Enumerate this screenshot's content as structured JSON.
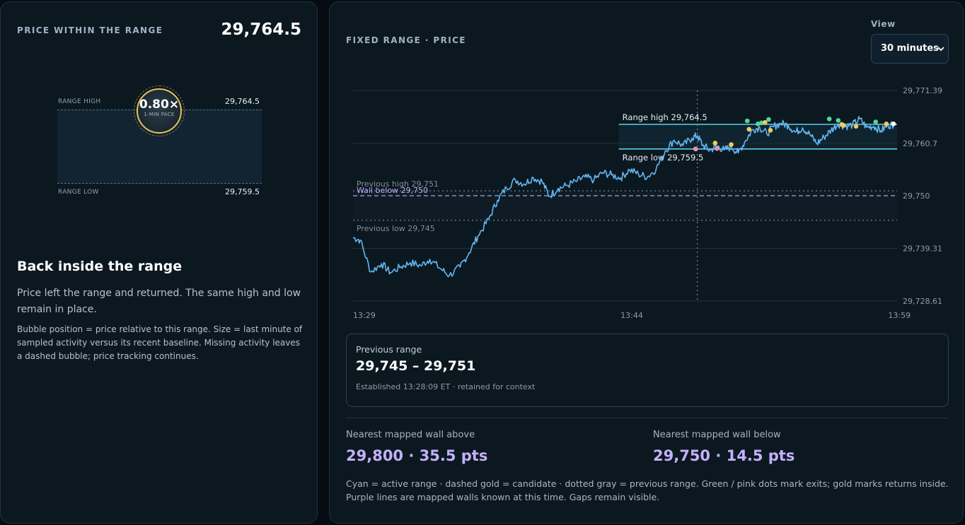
{
  "left": {
    "kicker": "PRICE WITHIN THE RANGE",
    "price": "29,764.5",
    "gauge": {
      "range_high_label": "RANGE HIGH",
      "range_high_value": "29,764.5",
      "range_low_label": "RANGE LOW",
      "range_low_value": "29,759.5",
      "pace_value": "0.80×",
      "pace_label": "1-MIN PACE",
      "position_fraction": 1.0
    },
    "status_title": "Back inside the range",
    "status_text": "Price left the range and returned. The same high and low remain in place.",
    "note": "Bubble position = price relative to this range. Size = last minute of sampled activity versus its recent baseline. Missing activity leaves a dashed bubble; price tracking continues."
  },
  "right": {
    "kicker": "FIXED RANGE · PRICE",
    "view_label": "View",
    "view_value": "30 minutes",
    "view_options": [
      "30 minutes"
    ],
    "chart_labels": {
      "range_high": "Range high 29,764.5",
      "range_low": "Range low 29,759.5",
      "prev_high": "Previous high 29,751",
      "wall_below": "Wall below 29,750",
      "prev_low": "Previous low 29,745"
    },
    "previous_range": {
      "title": "Previous range",
      "value": "29,745 – 29,751",
      "note": "Established 13:28:09 ET · retained for context"
    },
    "wall_above": {
      "title": "Nearest mapped wall above",
      "value": "29,800 · 35.5 pts"
    },
    "wall_below": {
      "title": "Nearest mapped wall below",
      "value": "29,750 · 14.5 pts"
    },
    "legend": "Cyan = active range · dashed gold = candidate · dotted gray = previous range. Green / pink dots mark exits; gold marks returns inside. Purple lines are mapped walls known at this time. Gaps remain visible."
  },
  "colors": {
    "accent_cyan": "#5ed0e6",
    "price_line": "#63b6f1",
    "gold": "#f2c95c",
    "green": "#4fd89a",
    "pink": "#f08fb8",
    "purple": "#c2b1fb",
    "panel_bg": "#0c1820"
  },
  "chart_data": {
    "type": "line",
    "title": "",
    "xlabel": "",
    "ylabel": "",
    "x_ticks": [
      "13:29",
      "13:44",
      "13:59"
    ],
    "y_ticks": [
      "29,771.39",
      "29,760.7",
      "29,750",
      "29,739.31",
      "29,728.61"
    ],
    "xlim": [
      0,
      30.5
    ],
    "ylim": [
      29728.61,
      29771.39
    ],
    "cursor_x": 19.3,
    "levels": {
      "range_high": 29764.5,
      "range_low": 29759.5,
      "previous_high": 29751,
      "previous_low": 29745,
      "wall_below": 29750
    },
    "series": [
      {
        "values": [
          [
            0,
            29741.5
          ],
          [
            0.4,
            29741
          ],
          [
            1.0,
            29734.5
          ],
          [
            1.6,
            29736.2
          ],
          [
            2.1,
            29734.4
          ],
          [
            2.7,
            29735.6
          ],
          [
            3.2,
            29736.4
          ],
          [
            3.8,
            29735.8
          ],
          [
            4.3,
            29737.1
          ],
          [
            4.9,
            29735.2
          ],
          [
            5.4,
            29733.8
          ],
          [
            6.0,
            29735.5
          ],
          [
            6.5,
            29738.4
          ],
          [
            7.0,
            29741.8
          ],
          [
            7.6,
            29745.2
          ],
          [
            8.1,
            29749.1
          ],
          [
            8.6,
            29751.6
          ],
          [
            9.1,
            29753.2
          ],
          [
            9.6,
            29752.4
          ],
          [
            10.1,
            29753.7
          ],
          [
            10.6,
            29752.9
          ],
          [
            11.0,
            29749.9
          ],
          [
            11.5,
            29751.5
          ],
          [
            12.0,
            29752.1
          ],
          [
            12.5,
            29752.9
          ],
          [
            13.0,
            29753.8
          ],
          [
            13.5,
            29753.2
          ],
          [
            14.0,
            29754.7
          ],
          [
            14.5,
            29754.2
          ],
          [
            15.0,
            29753.6
          ],
          [
            15.5,
            29755.3
          ],
          [
            16.0,
            29754.4
          ],
          [
            16.5,
            29753.8
          ],
          [
            17.0,
            29755.5
          ],
          [
            17.5,
            29759.1
          ],
          [
            18.0,
            29761.3
          ],
          [
            18.5,
            29760.2
          ],
          [
            19.0,
            29761.7
          ],
          [
            19.3,
            29762.2
          ],
          [
            19.6,
            29760.3
          ],
          [
            20.0,
            29759.2
          ],
          [
            20.4,
            29760.1
          ],
          [
            20.8,
            29759.3
          ],
          [
            21.2,
            29759.9
          ],
          [
            21.6,
            29758.7
          ],
          [
            22.0,
            29761.2
          ],
          [
            22.4,
            29763.4
          ],
          [
            22.8,
            29763.9
          ],
          [
            23.2,
            29762.6
          ],
          [
            23.6,
            29764.1
          ],
          [
            24.0,
            29764.7
          ],
          [
            24.4,
            29764.3
          ],
          [
            24.8,
            29762.9
          ],
          [
            25.2,
            29763.8
          ],
          [
            25.6,
            29762.5
          ],
          [
            26.0,
            29760.6
          ],
          [
            26.4,
            29761.9
          ],
          [
            26.8,
            29763.3
          ],
          [
            27.2,
            29764.6
          ],
          [
            27.6,
            29764.1
          ],
          [
            28.0,
            29764.4
          ],
          [
            28.4,
            29765.6
          ],
          [
            28.8,
            29763.9
          ],
          [
            29.2,
            29764.1
          ],
          [
            29.6,
            29763.2
          ],
          [
            30.0,
            29764.3
          ],
          [
            30.3,
            29764.5
          ]
        ]
      }
    ],
    "markers": [
      {
        "x": 19.2,
        "y": 29759.5,
        "kind": "pink"
      },
      {
        "x": 20.3,
        "y": 29760.7,
        "kind": "gold"
      },
      {
        "x": 20.4,
        "y": 29759.6,
        "kind": "pink"
      },
      {
        "x": 21.2,
        "y": 29760.4,
        "kind": "gold"
      },
      {
        "x": 22.1,
        "y": 29765.2,
        "kind": "green"
      },
      {
        "x": 22.2,
        "y": 29763.5,
        "kind": "gold"
      },
      {
        "x": 22.7,
        "y": 29764.6,
        "kind": "green"
      },
      {
        "x": 22.9,
        "y": 29764.8,
        "kind": "green"
      },
      {
        "x": 23.1,
        "y": 29764.9,
        "kind": "gold"
      },
      {
        "x": 23.3,
        "y": 29765.5,
        "kind": "green"
      },
      {
        "x": 23.4,
        "y": 29763.3,
        "kind": "gold"
      },
      {
        "x": 26.7,
        "y": 29765.6,
        "kind": "green"
      },
      {
        "x": 27.2,
        "y": 29765.3,
        "kind": "green"
      },
      {
        "x": 27.4,
        "y": 29764.5,
        "kind": "gold"
      },
      {
        "x": 27.5,
        "y": 29764.3,
        "kind": "gold"
      },
      {
        "x": 28.2,
        "y": 29764.1,
        "kind": "gold"
      },
      {
        "x": 29.3,
        "y": 29765.0,
        "kind": "green"
      },
      {
        "x": 29.9,
        "y": 29764.6,
        "kind": "gold"
      },
      {
        "x": 30.3,
        "y": 29764.6,
        "kind": "white"
      }
    ]
  }
}
